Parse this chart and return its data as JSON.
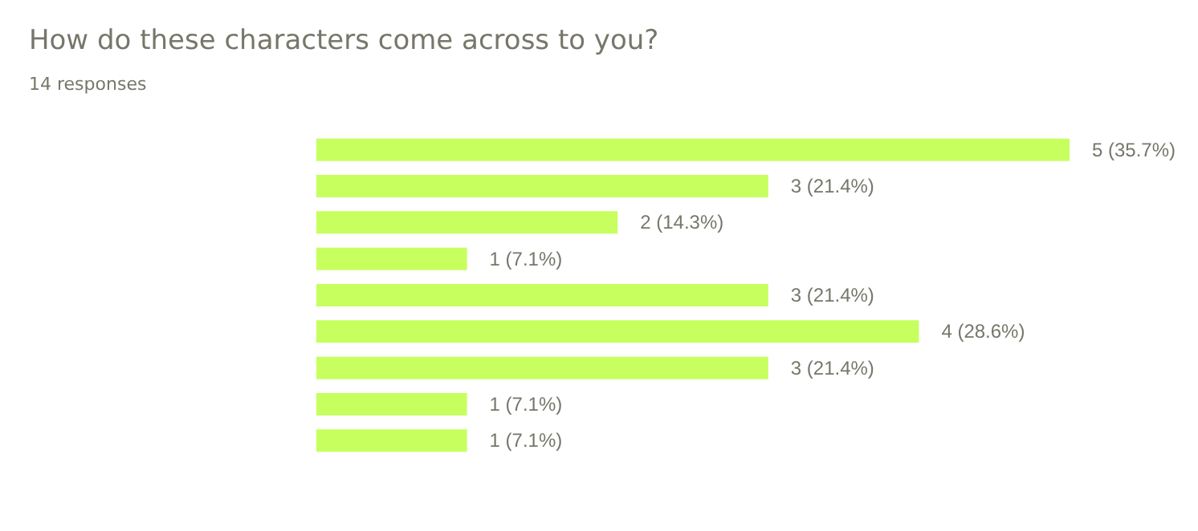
{
  "chart_data": {
    "type": "bar",
    "orientation": "horizontal",
    "title": "How do these characters come across to you?",
    "subtitle": "14 responses",
    "categories": [
      null,
      null,
      null,
      null,
      null,
      null,
      null,
      null,
      null
    ],
    "values": [
      5,
      3,
      2,
      1,
      3,
      4,
      3,
      1,
      1
    ],
    "value_labels": [
      "5 (35.7%)",
      "3 (21.4%)",
      "2 (14.3%)",
      "1 (7.1%)",
      "3 (21.4%)",
      "4 (28.6%)",
      "3 (21.4%)",
      "1 (7.1%)",
      "1 (7.1%)"
    ],
    "color": "#c6ff5e",
    "tick_labels": false
  }
}
